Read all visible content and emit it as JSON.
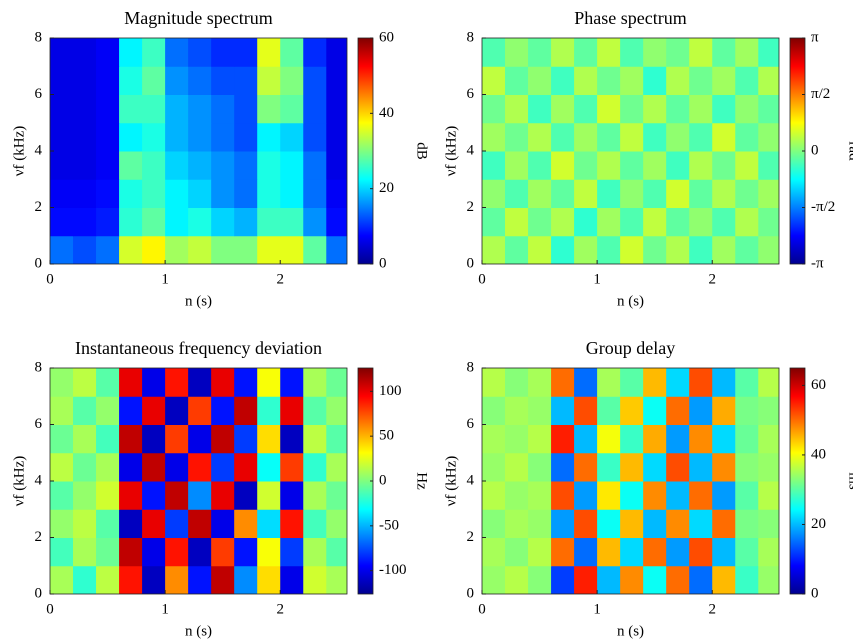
{
  "chart_data": [
    {
      "type": "heatmap",
      "title": "Magnitude spectrum",
      "xlabel": "n (s)",
      "ylabel": "νf (kHz)",
      "colormap": "jet",
      "x": [
        0.1,
        0.3,
        0.5,
        0.7,
        0.9,
        1.1,
        1.3,
        1.5,
        1.7,
        1.9,
        2.1,
        2.3,
        2.5
      ],
      "y": [
        0.5,
        1.5,
        2.5,
        3.5,
        4.5,
        5.5,
        6.5,
        7.5
      ],
      "z": [
        [
          14,
          12,
          14,
          35,
          38,
          32,
          34,
          30,
          30,
          36,
          36,
          28,
          14
        ],
        [
          8,
          8,
          9,
          25,
          28,
          22,
          24,
          20,
          18,
          26,
          26,
          16,
          8
        ],
        [
          7,
          7,
          8,
          24,
          26,
          22,
          20,
          16,
          14,
          24,
          22,
          14,
          7
        ],
        [
          6,
          6,
          7,
          28,
          26,
          20,
          18,
          16,
          14,
          24,
          22,
          14,
          6
        ],
        [
          6,
          6,
          7,
          22,
          24,
          18,
          16,
          14,
          12,
          22,
          20,
          12,
          6
        ],
        [
          6,
          6,
          7,
          26,
          26,
          18,
          16,
          14,
          12,
          30,
          28,
          12,
          6
        ],
        [
          6,
          6,
          7,
          24,
          28,
          16,
          14,
          12,
          12,
          34,
          30,
          12,
          6
        ],
        [
          6,
          6,
          7,
          22,
          26,
          14,
          12,
          10,
          10,
          36,
          28,
          10,
          6
        ]
      ],
      "xlim": [
        0,
        2.58
      ],
      "ylim": [
        0,
        8
      ],
      "xticks": [
        0,
        1,
        2
      ],
      "yticks": [
        0,
        2,
        4,
        6,
        8
      ],
      "clim": [
        0,
        60
      ],
      "cticks": [
        0,
        20,
        40,
        60
      ],
      "colorbar_label": "dB"
    },
    {
      "type": "heatmap",
      "title": "Phase spectrum",
      "xlabel": "n (s)",
      "ylabel": "νf (kHz)",
      "colormap": "jet",
      "x": [
        0.1,
        0.3,
        0.5,
        0.7,
        0.9,
        1.1,
        1.3,
        1.5,
        1.7,
        1.9,
        2.1,
        2.3,
        2.5
      ],
      "y": [
        0.5,
        1.5,
        2.5,
        3.5,
        4.5,
        5.5,
        6.5,
        7.5
      ],
      "z": [
        [
          0.3,
          -0.2,
          0.4,
          -0.5,
          0.2,
          -0.3,
          0.5,
          -0.1,
          0.3,
          -0.4,
          0.2,
          -0.2,
          0.1
        ],
        [
          -0.2,
          0.4,
          -0.1,
          0.3,
          -0.5,
          0.2,
          -0.3,
          0.4,
          -0.2,
          0.1,
          -0.3,
          0.3,
          -0.1
        ],
        [
          0.1,
          -0.3,
          0.2,
          -0.2,
          0.4,
          -0.4,
          0.1,
          -0.3,
          0.5,
          -0.2,
          0.3,
          -0.1,
          0.2
        ],
        [
          -0.4,
          0.2,
          -0.3,
          0.5,
          -0.1,
          0.3,
          -0.2,
          0.2,
          -0.4,
          0.3,
          -0.1,
          0.4,
          -0.3
        ],
        [
          0.2,
          -0.1,
          0.3,
          -0.3,
          0.2,
          -0.2,
          0.4,
          -0.4,
          0.1,
          -0.3,
          0.5,
          -0.2,
          0.1
        ],
        [
          -0.1,
          0.3,
          -0.4,
          0.2,
          -0.3,
          0.5,
          -0.1,
          0.3,
          -0.2,
          0.2,
          -0.4,
          0.1,
          -0.2
        ],
        [
          0.4,
          -0.2,
          0.1,
          -0.4,
          0.3,
          -0.1,
          0.2,
          -0.5,
          0.3,
          -0.1,
          0.2,
          -0.3,
          0.3
        ],
        [
          -0.3,
          0.1,
          -0.2,
          0.3,
          -0.2,
          0.4,
          -0.3,
          0.1,
          -0.1,
          0.4,
          -0.2,
          0.2,
          -0.4
        ]
      ],
      "xlim": [
        0,
        2.58
      ],
      "ylim": [
        0,
        8
      ],
      "xticks": [
        0,
        1,
        2
      ],
      "yticks": [
        0,
        2,
        4,
        6,
        8
      ],
      "clim": [
        -3.14159,
        3.14159
      ],
      "cticks": [
        {
          "value": -3.14159,
          "label": "-π"
        },
        {
          "value": -1.5708,
          "label": "-π/2"
        },
        0,
        {
          "value": 1.5708,
          "label": "π/2"
        },
        {
          "value": 3.14159,
          "label": "π"
        }
      ],
      "colorbar_label": "rad"
    },
    {
      "type": "heatmap",
      "title": "Instantaneous frequency deviation",
      "xlabel": "n (s)",
      "ylabel": "νf (kHz)",
      "colormap": "jet",
      "x": [
        0.1,
        0.3,
        0.5,
        0.7,
        0.9,
        1.1,
        1.3,
        1.5,
        1.7,
        1.9,
        2.1,
        2.3,
        2.5
      ],
      "y": [
        0.5,
        1.5,
        2.5,
        3.5,
        4.5,
        5.5,
        6.5,
        7.5
      ],
      "z": [
        [
          10,
          -20,
          15,
          90,
          -110,
          60,
          -90,
          110,
          -60,
          40,
          -100,
          20,
          10
        ],
        [
          -15,
          10,
          -5,
          110,
          -100,
          90,
          -110,
          80,
          -90,
          30,
          -80,
          10,
          -10
        ],
        [
          5,
          15,
          -10,
          -110,
          100,
          -80,
          110,
          -100,
          60,
          -40,
          90,
          -15,
          5
        ],
        [
          -10,
          5,
          20,
          100,
          -90,
          110,
          -60,
          100,
          -110,
          20,
          -100,
          10,
          -5
        ],
        [
          15,
          -5,
          10,
          -100,
          110,
          -100,
          90,
          -80,
          100,
          -30,
          80,
          -20,
          10
        ],
        [
          -5,
          10,
          -15,
          110,
          -110,
          80,
          -100,
          110,
          -80,
          40,
          -110,
          15,
          -10
        ],
        [
          10,
          -10,
          5,
          -90,
          100,
          -110,
          80,
          -90,
          110,
          -20,
          100,
          -10,
          5
        ],
        [
          5,
          15,
          -10,
          100,
          -100,
          90,
          -110,
          100,
          -90,
          30,
          -90,
          10,
          -5
        ]
      ],
      "xlim": [
        0,
        2.58
      ],
      "ylim": [
        0,
        8
      ],
      "xticks": [
        0,
        1,
        2
      ],
      "yticks": [
        0,
        2,
        4,
        6,
        8
      ],
      "clim": [
        -126,
        126
      ],
      "cticks": [
        -100,
        -50,
        0,
        50,
        100
      ],
      "colorbar_label": "Hz"
    },
    {
      "type": "heatmap",
      "title": "Group delay",
      "xlabel": "n (s)",
      "ylabel": "νf (kHz)",
      "colormap": "jet",
      "x": [
        0.1,
        0.3,
        0.5,
        0.7,
        0.9,
        1.1,
        1.3,
        1.5,
        1.7,
        1.9,
        2.1,
        2.3,
        2.5
      ],
      "y": [
        0.5,
        1.5,
        2.5,
        3.5,
        4.5,
        5.5,
        6.5,
        7.5
      ],
      "z": [
        [
          34,
          36,
          33,
          12,
          55,
          20,
          48,
          25,
          50,
          15,
          45,
          28,
          34
        ],
        [
          35,
          33,
          36,
          50,
          15,
          45,
          22,
          50,
          18,
          52,
          20,
          30,
          35
        ],
        [
          33,
          35,
          34,
          18,
          52,
          25,
          45,
          20,
          48,
          22,
          50,
          32,
          33
        ],
        [
          36,
          34,
          35,
          52,
          18,
          42,
          25,
          48,
          20,
          50,
          18,
          30,
          36
        ],
        [
          34,
          36,
          33,
          15,
          50,
          28,
          45,
          22,
          52,
          20,
          48,
          33,
          34
        ],
        [
          35,
          34,
          36,
          55,
          20,
          40,
          28,
          46,
          18,
          48,
          22,
          31,
          35
        ],
        [
          33,
          35,
          34,
          20,
          52,
          30,
          44,
          25,
          50,
          18,
          46,
          32,
          33
        ],
        [
          36,
          33,
          35,
          50,
          15,
          35,
          30,
          45,
          22,
          52,
          20,
          30,
          36
        ]
      ],
      "xlim": [
        0,
        2.58
      ],
      "ylim": [
        0,
        8
      ],
      "xticks": [
        0,
        1,
        2
      ],
      "yticks": [
        0,
        2,
        4,
        6,
        8
      ],
      "clim": [
        0,
        65
      ],
      "cticks": [
        0,
        20,
        40,
        60
      ],
      "colorbar_label": "ms"
    }
  ]
}
